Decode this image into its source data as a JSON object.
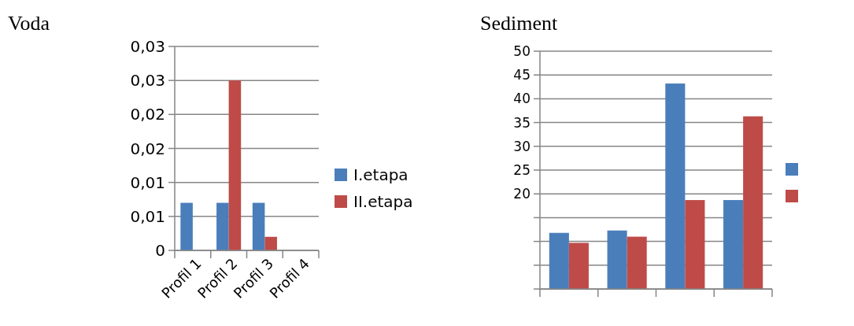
{
  "chart_data": [
    {
      "type": "bar",
      "title": "Voda",
      "categories": [
        "Profil 1",
        "Profil 2",
        "Profil 3",
        "Profil 4"
      ],
      "series": [
        {
          "name": "I.etapa",
          "color": "#4a7ebb",
          "values": [
            0.007,
            0.007,
            0.007,
            null
          ]
        },
        {
          "name": "II.etapa",
          "color": "#be4b48",
          "values": [
            null,
            0.025,
            0.002,
            null
          ]
        }
      ],
      "ylim": [
        0,
        0.03
      ],
      "yticks": [
        0,
        {
          "value": 0.005,
          "label": "0,01"
        },
        {
          "value": 0.01,
          "label": "0,01"
        },
        {
          "value": 0.015,
          "label": "0,02"
        },
        {
          "value": 0.02,
          "label": "0,02"
        },
        {
          "value": 0.025,
          "label": "0,03"
        },
        {
          "value": 0.03,
          "label": "0,03"
        }
      ],
      "grid": "y",
      "legend": "right"
    },
    {
      "type": "bar",
      "title": "Sediment",
      "categories": [
        null,
        null,
        null,
        null
      ],
      "series": [
        {
          "color": "#4a7ebb",
          "values": [
            11.8,
            12.3,
            43.2,
            18.7
          ]
        },
        {
          "color": "#be4b48",
          "values": [
            9.7,
            11,
            18.7,
            36.3
          ]
        }
      ],
      "ylim": [
        0,
        50
      ],
      "yticks": [
        {
          "value": 0,
          "label": null
        },
        {
          "value": 5,
          "label": null
        },
        {
          "value": 10,
          "label": null
        },
        {
          "value": 15,
          "label": null
        },
        20,
        25,
        30,
        35,
        40,
        45,
        50
      ],
      "grid": "y",
      "legend": "right"
    }
  ]
}
